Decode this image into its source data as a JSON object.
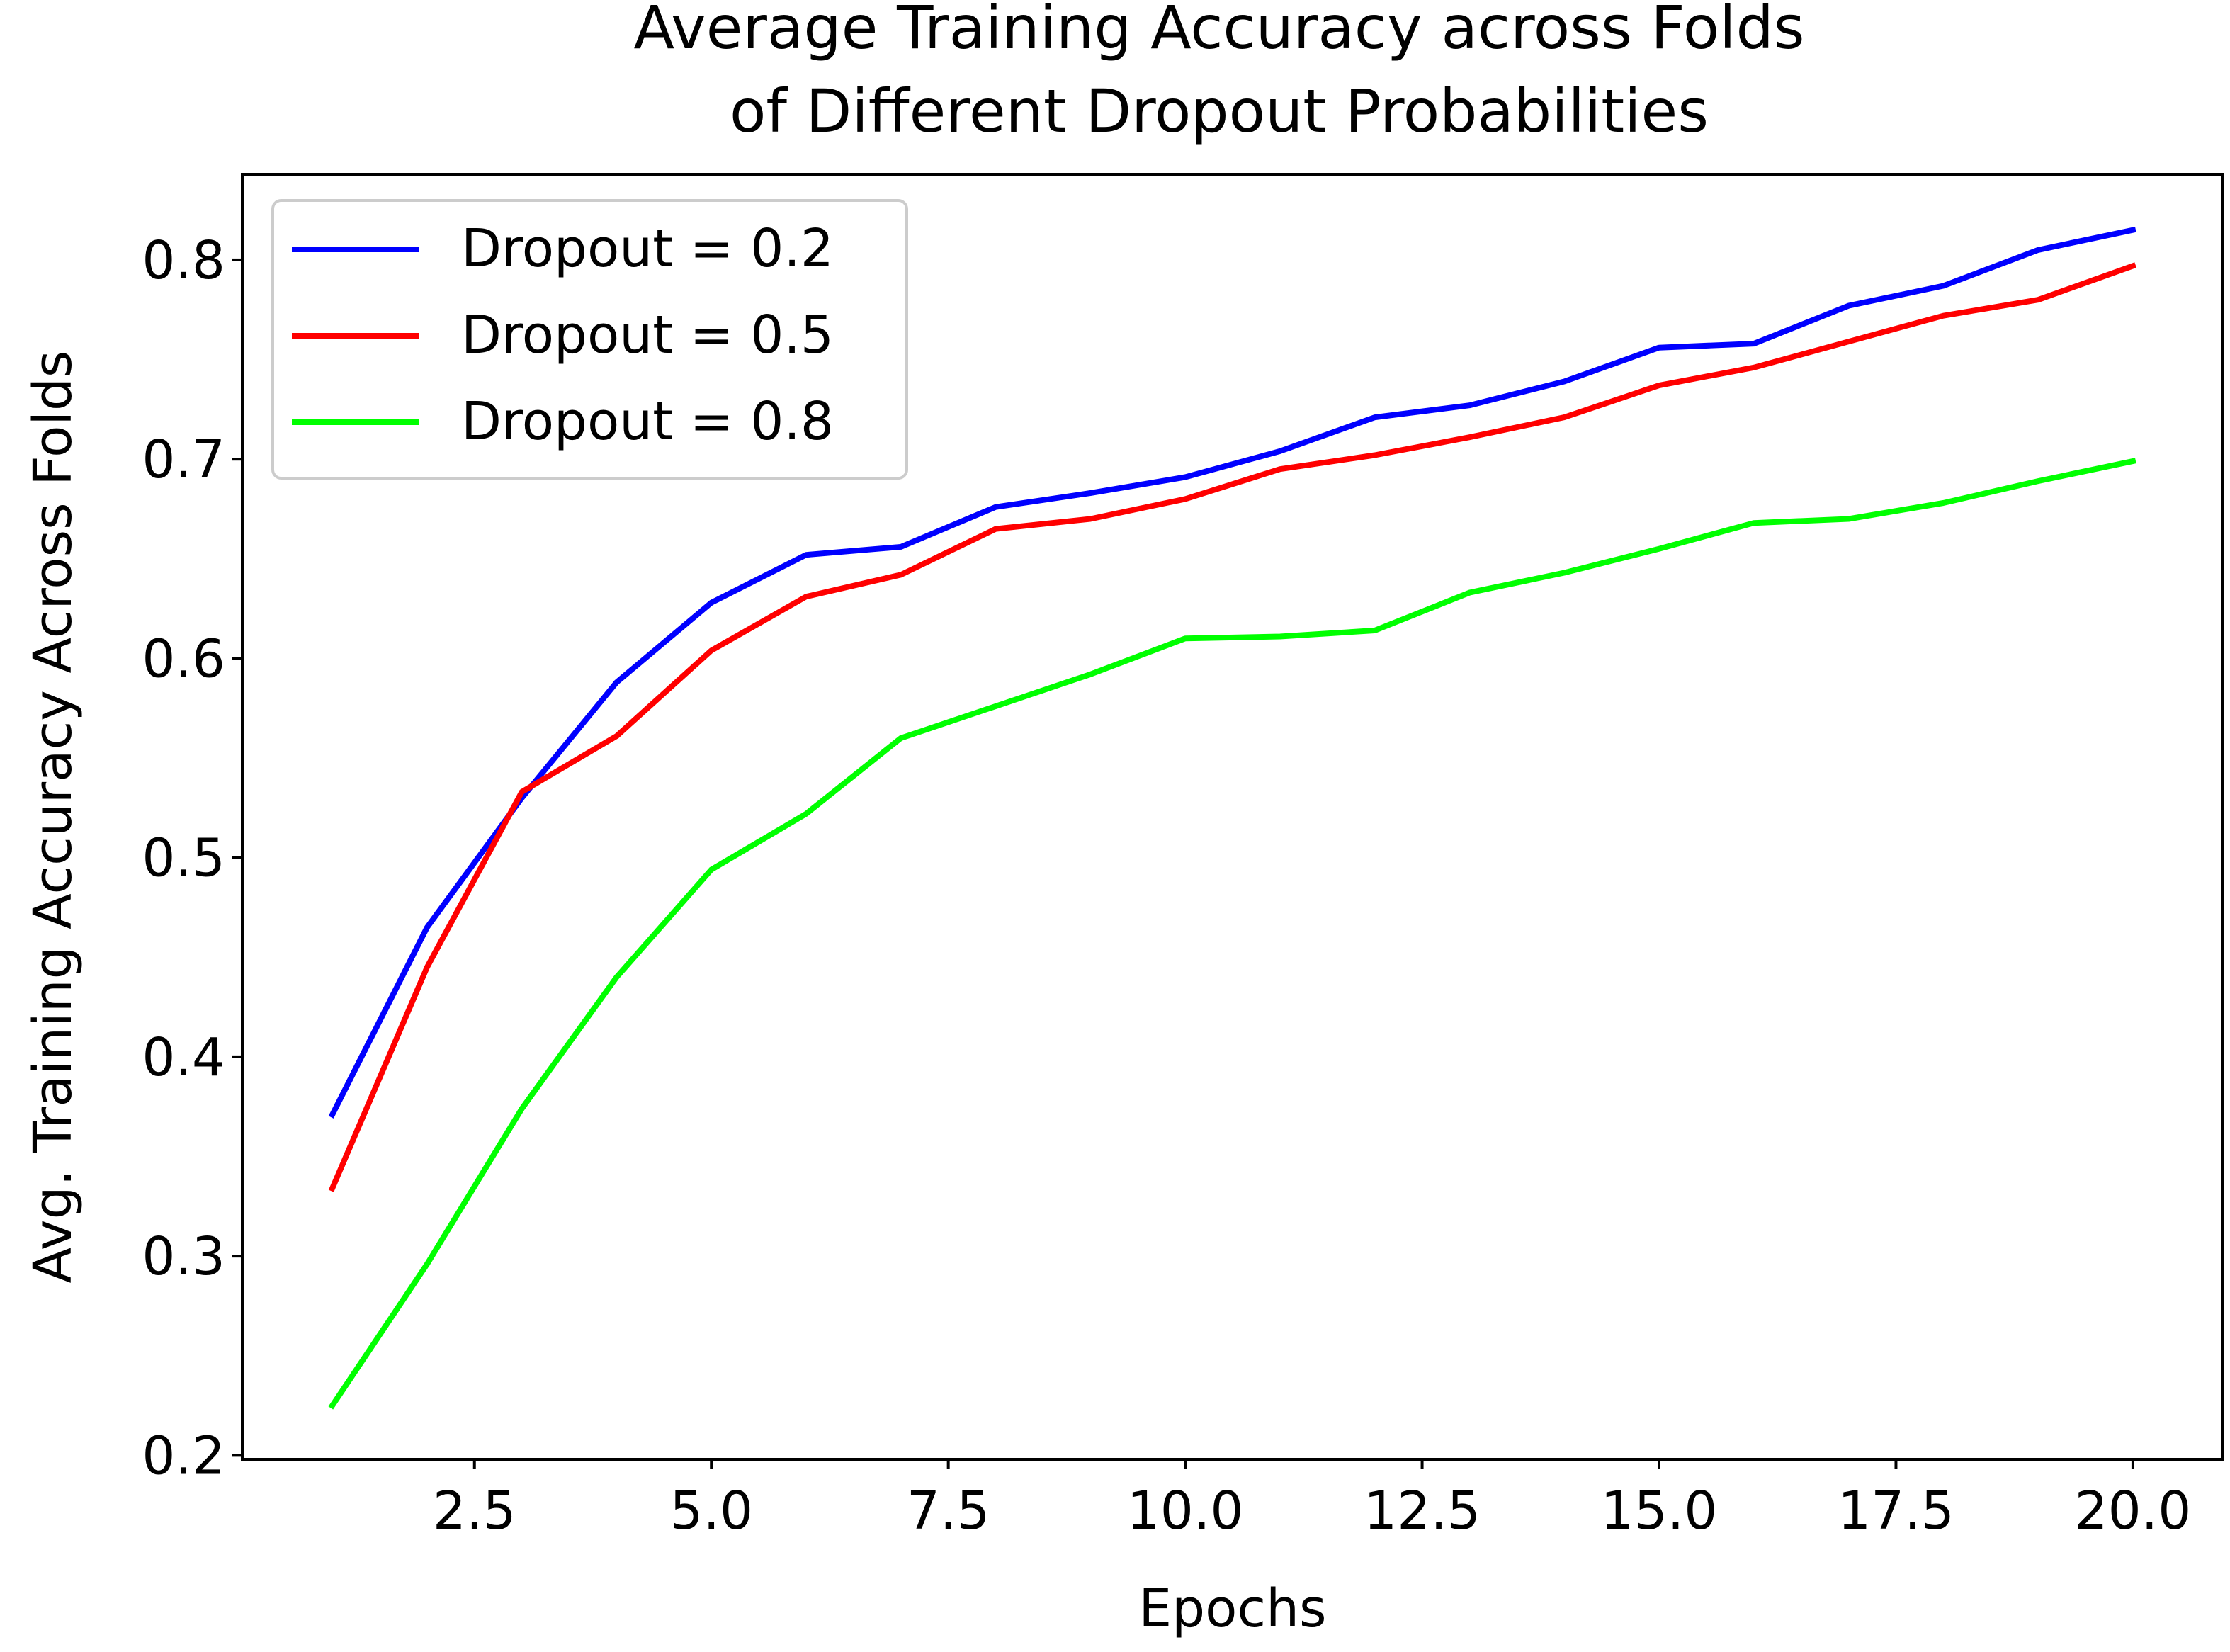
{
  "chart_data": {
    "type": "line",
    "title_lines": [
      "Average Training Accuracy across Folds",
      "of Different Dropout Probabilities"
    ],
    "xlabel": "Epochs",
    "ylabel": "Avg. Training Accuracy Across Folds",
    "xlim": [
      0.05,
      20.95
    ],
    "ylim": [
      0.198,
      0.843
    ],
    "xticks": [
      2.5,
      5.0,
      7.5,
      10.0,
      12.5,
      15.0,
      17.5,
      20.0
    ],
    "xtick_labels": [
      "2.5",
      "5.0",
      "7.5",
      "10.0",
      "12.5",
      "15.0",
      "17.5",
      "20.0"
    ],
    "yticks": [
      0.2,
      0.3,
      0.4,
      0.5,
      0.6,
      0.7,
      0.8
    ],
    "ytick_labels": [
      "0.2",
      "0.3",
      "0.4",
      "0.5",
      "0.6",
      "0.7",
      "0.8"
    ],
    "grid": false,
    "legend_position": "top-left",
    "x": [
      1,
      2,
      3,
      4,
      5,
      6,
      7,
      8,
      9,
      10,
      11,
      12,
      13,
      14,
      15,
      16,
      17,
      18,
      19,
      20
    ],
    "series": [
      {
        "name": "Dropout = 0.2",
        "color": "#0000ff",
        "values": [
          0.371,
          0.465,
          0.53,
          0.588,
          0.628,
          0.652,
          0.656,
          0.676,
          0.683,
          0.691,
          0.704,
          0.721,
          0.727,
          0.739,
          0.756,
          0.758,
          0.777,
          0.787,
          0.805,
          0.815
        ]
      },
      {
        "name": "Dropout = 0.5",
        "color": "#ff0000",
        "values": [
          0.334,
          0.445,
          0.533,
          0.561,
          0.604,
          0.631,
          0.642,
          0.665,
          0.67,
          0.68,
          0.695,
          0.702,
          0.711,
          0.721,
          0.737,
          0.746,
          0.759,
          0.772,
          0.78,
          0.797
        ]
      },
      {
        "name": "Dropout = 0.8",
        "color": "#00ff00",
        "values": [
          0.225,
          0.296,
          0.374,
          0.44,
          0.494,
          0.522,
          0.56,
          0.576,
          0.592,
          0.61,
          0.611,
          0.614,
          0.633,
          0.643,
          0.655,
          0.668,
          0.67,
          0.678,
          0.689,
          0.699
        ]
      }
    ]
  }
}
